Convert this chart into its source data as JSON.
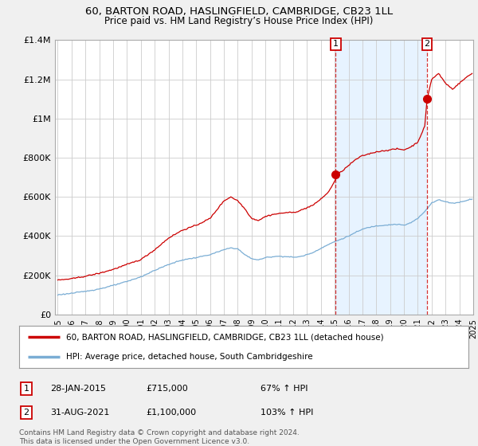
{
  "title": "60, BARTON ROAD, HASLINGFIELD, CAMBRIDGE, CB23 1LL",
  "subtitle": "Price paid vs. HM Land Registry’s House Price Index (HPI)",
  "bg_color": "#f0f0f0",
  "plot_bg_color": "#ffffff",
  "grid_color": "#cccccc",
  "red_color": "#cc0000",
  "blue_color": "#7aadd4",
  "shade_color": "#ddeeff",
  "marker1_label": "1",
  "marker2_label": "2",
  "annotation1_date": "28-JAN-2015",
  "annotation1_price": "£715,000",
  "annotation1_hpi": "67% ↑ HPI",
  "annotation2_date": "31-AUG-2021",
  "annotation2_price": "£1,100,000",
  "annotation2_hpi": "103% ↑ HPI",
  "legend_label1": "60, BARTON ROAD, HASLINGFIELD, CAMBRIDGE, CB23 1LL (detached house)",
  "legend_label2": "HPI: Average price, detached house, South Cambridgeshire",
  "footer": "Contains HM Land Registry data © Crown copyright and database right 2024.\nThis data is licensed under the Open Government Licence v3.0.",
  "ylim": [
    0,
    1400000
  ],
  "yticks": [
    0,
    200000,
    400000,
    600000,
    800000,
    1000000,
    1200000,
    1400000
  ],
  "ytick_labels": [
    "£0",
    "£200K",
    "£400K",
    "£600K",
    "£800K",
    "£1M",
    "£1.2M",
    "£1.4M"
  ],
  "x_start_year": 1995,
  "x_end_year": 2025,
  "sale1_year": 2015.07,
  "sale1_price": 715000,
  "sale2_year": 2021.67,
  "sale2_price": 1100000
}
